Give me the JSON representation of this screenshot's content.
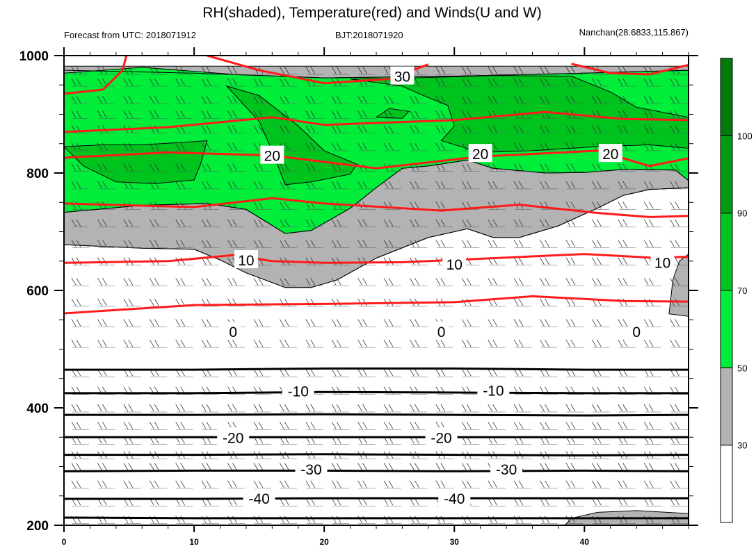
{
  "header": {
    "title": "RH(shaded), Temperature(red) and Winds(U and W)",
    "forecast": "Forecast from UTC: 2018071912",
    "bjt": "BJT:2018071920",
    "station": "Nanchan(28.6833,115.867)"
  },
  "chart_data": {
    "type": "heatmap",
    "title": "RH(shaded), Temperature(red) and Winds(U and W)",
    "x": {
      "range": [
        0,
        48
      ],
      "ticks": [
        0,
        10,
        20,
        30,
        40
      ],
      "tick_labels": [
        "0",
        "10",
        "20",
        "30",
        "40"
      ]
    },
    "y": {
      "range": [
        1000,
        200
      ],
      "inverted": true,
      "ticks": [
        200,
        400,
        600,
        800,
        1000
      ],
      "tick_labels": [
        "200",
        "400",
        "600",
        "800",
        "1000"
      ]
    },
    "rh_colorbar": {
      "levels": [
        30,
        50,
        70,
        90,
        100
      ],
      "labels": [
        "30",
        "50",
        "70",
        "90",
        "100"
      ],
      "colors": [
        "#ffffff",
        "#b3b3b3",
        "#00ee3a",
        "#00c41e",
        "#009a12",
        "#007a0b"
      ]
    },
    "rh_regions": [
      {
        "level": 50,
        "color": "#b3b3b3",
        "points": [
          [
            0,
            678
          ],
          [
            6,
            672
          ],
          [
            10,
            670
          ],
          [
            12,
            652
          ],
          [
            14,
            630
          ],
          [
            17,
            605
          ],
          [
            19,
            605
          ],
          [
            21,
            618
          ],
          [
            24,
            655
          ],
          [
            28,
            690
          ],
          [
            31,
            705
          ],
          [
            33,
            690
          ],
          [
            35,
            690
          ],
          [
            38,
            710
          ],
          [
            41,
            740
          ],
          [
            43,
            762
          ],
          [
            45,
            772
          ],
          [
            48,
            775
          ],
          [
            48,
            982
          ],
          [
            0,
            982
          ]
        ]
      },
      {
        "level": 50,
        "color": "#b3b3b3",
        "points": [
          [
            46.5,
            560
          ],
          [
            48,
            556
          ],
          [
            48,
            662
          ],
          [
            47.3,
            650
          ],
          [
            46.8,
            618
          ]
        ]
      },
      {
        "level": 50,
        "color": "#b3b3b3",
        "points": [
          [
            38.5,
            200
          ],
          [
            42,
            200
          ],
          [
            48,
            200
          ],
          [
            48,
            220
          ],
          [
            44,
            225
          ],
          [
            41,
            222
          ],
          [
            39,
            212
          ]
        ]
      },
      {
        "level": 70,
        "color": "#00ee3a",
        "points": [
          [
            0,
            733
          ],
          [
            6,
            745
          ],
          [
            11,
            748
          ],
          [
            14,
            738
          ],
          [
            17,
            697
          ],
          [
            19,
            702
          ],
          [
            22,
            740
          ],
          [
            24,
            775
          ],
          [
            26,
            808
          ],
          [
            28,
            812
          ],
          [
            31,
            822
          ],
          [
            33,
            808
          ],
          [
            37,
            800
          ],
          [
            40,
            801
          ],
          [
            43,
            806
          ],
          [
            47,
            805
          ],
          [
            48,
            787
          ],
          [
            48,
            975
          ],
          [
            40,
            970
          ],
          [
            30,
            965
          ],
          [
            20,
            962
          ],
          [
            13,
            968
          ],
          [
            6,
            980
          ],
          [
            0,
            970
          ]
        ]
      },
      {
        "level": 90,
        "color": "#00c41e",
        "points": [
          [
            0,
            845
          ],
          [
            1.5,
            812
          ],
          [
            4,
            785
          ],
          [
            7,
            782
          ],
          [
            10,
            788
          ],
          [
            10.5,
            815
          ],
          [
            11,
            855
          ],
          [
            9,
            852
          ],
          [
            6,
            848
          ],
          [
            3,
            848
          ]
        ]
      },
      {
        "level": 90,
        "color": "#00c41e",
        "points": [
          [
            12.5,
            948
          ],
          [
            15,
            888
          ],
          [
            16,
            838
          ],
          [
            17,
            780
          ],
          [
            19,
            785
          ],
          [
            22,
            798
          ],
          [
            22.5,
            815
          ],
          [
            20,
            838
          ],
          [
            18,
            880
          ],
          [
            15,
            932
          ]
        ]
      },
      {
        "level": 90,
        "color": "#00c41e",
        "points": [
          [
            22,
            960
          ],
          [
            26,
            948
          ],
          [
            27.5,
            933
          ],
          [
            29.5,
            915
          ],
          [
            30,
            880
          ],
          [
            29,
            855
          ],
          [
            32,
            835
          ],
          [
            36,
            838
          ],
          [
            41,
            845
          ],
          [
            45,
            848
          ],
          [
            48,
            842
          ],
          [
            48,
            895
          ],
          [
            44,
            912
          ],
          [
            42,
            938
          ],
          [
            39,
            965
          ],
          [
            33,
            966
          ],
          [
            27,
            962
          ]
        ]
      },
      {
        "level": 90,
        "color": "#00c41e",
        "points": [
          [
            24,
            895
          ],
          [
            26,
            893
          ],
          [
            26.5,
            905
          ],
          [
            25,
            910
          ]
        ]
      }
    ],
    "rh_contours": [
      [
        [
          0,
          678
        ],
        [
          6,
          672
        ],
        [
          10,
          670
        ],
        [
          12,
          652
        ],
        [
          14,
          630
        ],
        [
          17,
          605
        ],
        [
          19,
          605
        ],
        [
          21,
          618
        ],
        [
          24,
          655
        ],
        [
          28,
          690
        ],
        [
          31,
          705
        ],
        [
          33,
          690
        ],
        [
          35,
          690
        ],
        [
          38,
          710
        ],
        [
          41,
          740
        ],
        [
          43,
          762
        ],
        [
          45,
          772
        ],
        [
          48,
          775
        ]
      ],
      [
        [
          0,
          733
        ],
        [
          6,
          745
        ],
        [
          11,
          748
        ],
        [
          14,
          738
        ],
        [
          17,
          697
        ],
        [
          19,
          702
        ],
        [
          22,
          740
        ],
        [
          24,
          775
        ],
        [
          26,
          808
        ],
        [
          28,
          812
        ],
        [
          31,
          822
        ],
        [
          33,
          808
        ],
        [
          37,
          800
        ],
        [
          40,
          801
        ],
        [
          43,
          806
        ],
        [
          47,
          805
        ],
        [
          48,
          787
        ]
      ],
      [
        [
          0,
          975
        ],
        [
          10,
          970
        ],
        [
          20,
          962
        ],
        [
          30,
          965
        ],
        [
          40,
          970
        ],
        [
          48,
          975
        ]
      ]
    ],
    "temperature_contours": {
      "color": "#ff1a1a",
      "lines": [
        {
          "label": "0",
          "points": [
            [
              0,
              561
            ],
            [
              10,
              575
            ],
            [
              20,
              577
            ],
            [
              30,
              580
            ],
            [
              36,
              590
            ],
            [
              43,
              582
            ],
            [
              48,
              581
            ]
          ]
        },
        {
          "label": "10",
          "points": [
            [
              0,
              647
            ],
            [
              8,
              650
            ],
            [
              13,
              660
            ],
            [
              16,
              650
            ],
            [
              20,
              647
            ],
            [
              26,
              648
            ],
            [
              34,
              656
            ],
            [
              40,
              662
            ],
            [
              45,
              656
            ],
            [
              48,
              657
            ]
          ]
        },
        {
          "label": "",
          "points": [
            [
              0,
              748
            ],
            [
              10,
              742
            ],
            [
              16,
              757
            ],
            [
              20,
              748
            ],
            [
              29,
              736
            ],
            [
              35,
              746
            ],
            [
              41,
              732
            ],
            [
              45,
              725
            ],
            [
              48,
              727
            ]
          ]
        },
        {
          "label": "20",
          "points": [
            [
              0,
              826
            ],
            [
              8,
              835
            ],
            [
              16,
              830
            ],
            [
              24,
              808
            ],
            [
              32,
              828
            ],
            [
              41,
              838
            ],
            [
              45,
              812
            ],
            [
              48,
              825
            ]
          ]
        },
        {
          "label": "",
          "points": [
            [
              0,
              870
            ],
            [
              8,
              878
            ],
            [
              16,
              895
            ],
            [
              20,
              882
            ],
            [
              30,
              890
            ],
            [
              37,
              904
            ],
            [
              43,
              892
            ],
            [
              48,
              890
            ]
          ]
        },
        {
          "label": "30",
          "points": [
            [
              0,
              935
            ],
            [
              3,
              942
            ],
            [
              4.5,
              975
            ],
            [
              4.8,
              1000
            ]
          ]
        },
        {
          "label": "30",
          "points": [
            [
              11,
              1000
            ],
            [
              15,
              975
            ],
            [
              20,
              953
            ],
            [
              25,
              960
            ],
            [
              28,
              985
            ]
          ]
        },
        {
          "label": "",
          "points": [
            [
              39,
              986
            ],
            [
              42,
              970
            ],
            [
              45,
              968
            ],
            [
              48,
              984
            ]
          ]
        }
      ]
    },
    "temperature_labels": [
      {
        "text": "10",
        "x": 14,
        "y": 652
      },
      {
        "text": "10",
        "x": 30,
        "y": 645
      },
      {
        "text": "10",
        "x": 46,
        "y": 648
      },
      {
        "text": "20",
        "x": 16,
        "y": 830
      },
      {
        "text": "20",
        "x": 32,
        "y": 833
      },
      {
        "text": "20",
        "x": 42,
        "y": 833
      },
      {
        "text": "30",
        "x": 26,
        "y": 965
      },
      {
        "text": "0",
        "x": 13,
        "y": 530
      },
      {
        "text": "0",
        "x": 29,
        "y": 530
      },
      {
        "text": "0",
        "x": 44,
        "y": 530
      }
    ],
    "isotherm_contours": {
      "color": "#000000",
      "lines": [
        {
          "points": [
            [
              0,
              213
            ],
            [
              10,
              212
            ],
            [
              20,
              212
            ],
            [
              30,
              212
            ],
            [
              40,
              212
            ],
            [
              48,
              212
            ]
          ]
        },
        {
          "points": [
            [
              0,
              245
            ],
            [
              10,
              245
            ],
            [
              20,
              246
            ],
            [
              30,
              246
            ],
            [
              40,
              246
            ],
            [
              48,
              246
            ]
          ]
        },
        {
          "points": [
            [
              0,
              292
            ],
            [
              10,
              293
            ],
            [
              20,
              293
            ],
            [
              30,
              292
            ],
            [
              40,
              293
            ],
            [
              48,
              292
            ]
          ]
        },
        {
          "points": [
            [
              0,
              320
            ],
            [
              10,
              320
            ],
            [
              20,
              321
            ],
            [
              30,
              320
            ],
            [
              40,
              319
            ],
            [
              48,
              320
            ]
          ]
        },
        {
          "points": [
            [
              0,
              350
            ],
            [
              10,
              350
            ],
            [
              20,
              350
            ],
            [
              30,
              350
            ],
            [
              40,
              350
            ],
            [
              48,
              350
            ]
          ]
        },
        {
          "points": [
            [
              0,
              388
            ],
            [
              10,
              388
            ],
            [
              20,
              389
            ],
            [
              30,
              388
            ],
            [
              40,
              387
            ],
            [
              48,
              388
            ]
          ]
        },
        {
          "points": [
            [
              0,
              425
            ],
            [
              10,
              425
            ],
            [
              20,
              427
            ],
            [
              30,
              426
            ],
            [
              40,
              425
            ],
            [
              48,
              425
            ]
          ]
        },
        {
          "points": [
            [
              0,
              465
            ],
            [
              10,
              465
            ],
            [
              20,
              467
            ],
            [
              30,
              467
            ],
            [
              40,
              465
            ],
            [
              48,
              465
            ]
          ]
        }
      ]
    },
    "isotherm_labels": [
      {
        "text": "-40",
        "x": 15,
        "y": 246
      },
      {
        "text": "-40",
        "x": 30,
        "y": 246
      },
      {
        "text": "-30",
        "x": 19,
        "y": 296
      },
      {
        "text": "-30",
        "x": 34,
        "y": 296
      },
      {
        "text": "-20",
        "x": 13,
        "y": 350
      },
      {
        "text": "-20",
        "x": 29,
        "y": 350
      },
      {
        "text": "-10",
        "x": 18,
        "y": 429
      },
      {
        "text": "-10",
        "x": 33,
        "y": 430
      }
    ],
    "wind_levels": [
      210,
      240,
      270,
      300,
      320,
      345,
      370,
      400,
      430,
      460,
      510,
      545,
      580,
      615,
      650,
      680,
      715,
      745,
      780,
      810,
      845,
      875,
      900,
      925,
      955,
      975
    ],
    "wind_x": [
      0,
      2,
      4,
      6,
      8,
      10,
      12,
      14,
      16,
      18,
      20,
      22,
      24,
      26,
      28,
      30,
      32,
      34,
      36,
      38,
      40,
      42,
      44,
      46,
      48
    ]
  }
}
